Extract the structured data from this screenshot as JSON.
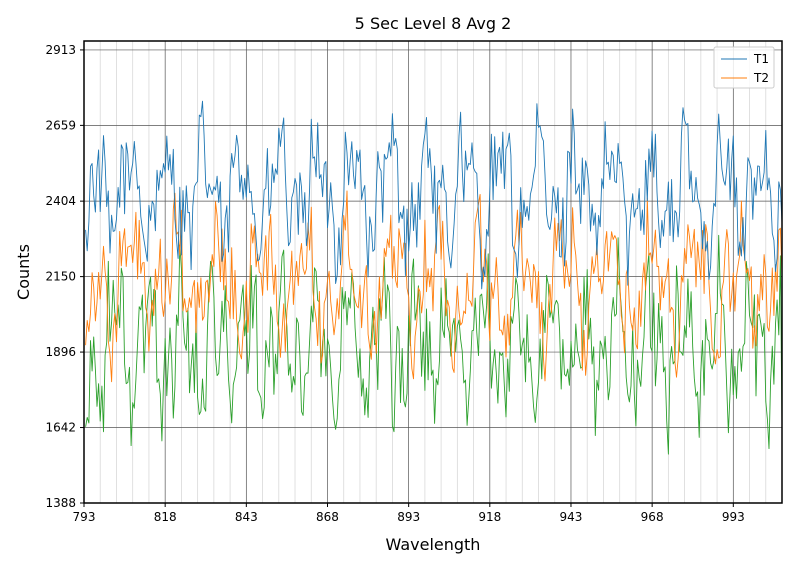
{
  "chart_data": {
    "type": "line",
    "title": "5 Sec Level 8 Avg 2",
    "xlabel": "Wavelength",
    "ylabel": "Counts",
    "xlim": [
      793,
      1008
    ],
    "ylim": [
      1388,
      2943
    ],
    "x_ticks": [
      793,
      818,
      843,
      868,
      893,
      918,
      943,
      968,
      993
    ],
    "y_ticks": [
      1388,
      1642,
      1896,
      2150,
      2404,
      2659,
      2913
    ],
    "x_tick_labels": [
      "793",
      "818",
      "843",
      "868",
      "893",
      "918",
      "943",
      "968",
      "993"
    ],
    "y_tick_labels": [
      "1388",
      "1642",
      "1896",
      "2150",
      "2404",
      "2659",
      "2913"
    ],
    "grid": true,
    "legend_position": "top-right",
    "x_step": 0.5,
    "series": [
      {
        "name": "T1",
        "color": "#1f77b4",
        "base": 2430,
        "amp": 230,
        "freq": 0.55,
        "end": 2330
      },
      {
        "name": "T2",
        "color": "#ff7f0e",
        "base": 2130,
        "amp": 230,
        "freq": 0.47,
        "end": 2150
      },
      {
        "name": "",
        "color": "#2ca02c",
        "base": 1920,
        "amp": 260,
        "freq": 0.61,
        "end": 1640
      }
    ]
  }
}
